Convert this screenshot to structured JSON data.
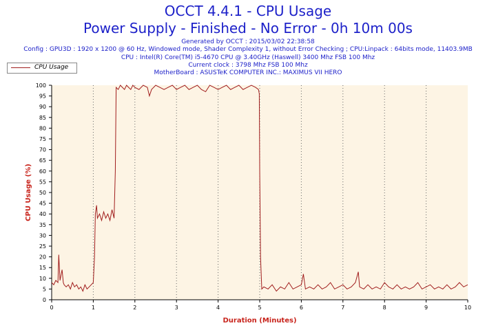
{
  "chart_data": {
    "type": "line",
    "title": "OCCT 4.4.1 - CPU Usage",
    "subtitle": "Power Supply - Finished - No Error - 0h 10m 00s",
    "info_lines": [
      "Generated by OCCT : 2015/03/02 22:38:58",
      "Config : GPU3D : 1920 x 1200 @ 60 Hz, Windowed mode, Shader Complexity 1, without Error Checking ; CPU:Linpack : 64bits mode, 11403.9MB",
      "CPU : Intel(R) Core(TM) i5-4670 CPU @ 3.40GHz (Haswell) 3400 Mhz FSB 100 Mhz",
      "Current clock : 3798 Mhz FSB 100 Mhz",
      "MotherBoard : ASUSTeK COMPUTER INC.: MAXIMUS VII HERO"
    ],
    "xlabel": "Duration (Minutes)",
    "ylabel": "CPU Usage (%)",
    "xlim": [
      0,
      10
    ],
    "ylim": [
      0,
      100
    ],
    "xticks": [
      "0",
      "1",
      "2",
      "3",
      "4",
      "5",
      "6",
      "7",
      "8",
      "9",
      "10"
    ],
    "yticks": [
      "0",
      "5",
      "10",
      "15",
      "20",
      "25",
      "30",
      "35",
      "40",
      "45",
      "50",
      "55",
      "60",
      "65",
      "70",
      "75",
      "80",
      "85",
      "90",
      "95",
      "100"
    ],
    "grid": "vertical dotted",
    "legend_position": "top-left",
    "series": [
      {
        "name": "CPU Usage",
        "color": "#a01c1c",
        "x": [
          0,
          0.05,
          0.1,
          0.15,
          0.17,
          0.2,
          0.25,
          0.28,
          0.3,
          0.35,
          0.4,
          0.45,
          0.5,
          0.55,
          0.6,
          0.65,
          0.7,
          0.75,
          0.8,
          0.85,
          0.9,
          0.95,
          1.0,
          1.03,
          1.05,
          1.08,
          1.1,
          1.15,
          1.2,
          1.25,
          1.3,
          1.35,
          1.4,
          1.45,
          1.5,
          1.53,
          1.55,
          1.6,
          1.65,
          1.7,
          1.75,
          1.8,
          1.85,
          1.9,
          1.95,
          2.0,
          2.1,
          2.2,
          2.3,
          2.35,
          2.4,
          2.5,
          2.6,
          2.7,
          2.8,
          2.9,
          3.0,
          3.1,
          3.2,
          3.3,
          3.4,
          3.5,
          3.6,
          3.7,
          3.8,
          3.9,
          4.0,
          4.1,
          4.2,
          4.3,
          4.4,
          4.5,
          4.6,
          4.7,
          4.8,
          4.9,
          4.97,
          4.99,
          5.0,
          5.02,
          5.05,
          5.1,
          5.2,
          5.3,
          5.4,
          5.5,
          5.6,
          5.7,
          5.8,
          5.9,
          6.0,
          6.05,
          6.1,
          6.2,
          6.3,
          6.4,
          6.5,
          6.6,
          6.7,
          6.8,
          6.9,
          7.0,
          7.1,
          7.2,
          7.3,
          7.37,
          7.4,
          7.5,
          7.6,
          7.7,
          7.8,
          7.9,
          8.0,
          8.1,
          8.2,
          8.3,
          8.4,
          8.5,
          8.6,
          8.7,
          8.8,
          8.9,
          9.0,
          9.1,
          9.2,
          9.3,
          9.4,
          9.5,
          9.6,
          9.7,
          9.8,
          9.9,
          10.0
        ],
        "values": [
          8,
          7,
          9,
          8,
          21,
          9,
          14,
          8,
          7,
          6,
          7,
          5,
          8,
          6,
          7,
          5,
          6,
          4,
          7,
          5,
          6,
          7,
          8,
          20,
          40,
          44,
          38,
          40,
          37,
          41,
          38,
          40,
          37,
          42,
          38,
          60,
          99,
          98,
          100,
          99,
          98,
          100,
          99,
          98,
          100,
          99,
          98,
          100,
          99,
          95,
          98,
          100,
          99,
          98,
          99,
          100,
          98,
          99,
          100,
          98,
          99,
          100,
          98,
          97,
          100,
          99,
          98,
          99,
          100,
          98,
          99,
          100,
          98,
          99,
          100,
          99,
          98,
          96,
          60,
          20,
          5,
          6,
          5,
          7,
          4,
          6,
          5,
          8,
          5,
          6,
          7,
          12,
          5,
          6,
          5,
          7,
          5,
          6,
          8,
          5,
          6,
          7,
          5,
          6,
          8,
          13,
          6,
          5,
          7,
          5,
          6,
          5,
          8,
          6,
          5,
          7,
          5,
          6,
          5,
          6,
          8,
          5,
          6,
          7,
          5,
          6,
          5,
          7,
          5,
          6,
          8,
          6,
          7
        ]
      }
    ]
  }
}
